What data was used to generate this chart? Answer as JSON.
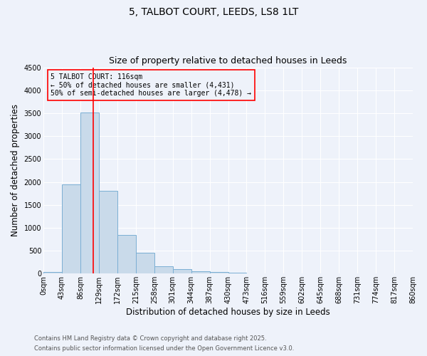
{
  "title1": "5, TALBOT COURT, LEEDS, LS8 1LT",
  "title2": "Size of property relative to detached houses in Leeds",
  "xlabel": "Distribution of detached houses by size in Leeds",
  "ylabel": "Number of detached properties",
  "bar_edges": [
    0,
    43,
    86,
    129,
    172,
    215,
    258,
    301,
    344,
    387,
    430,
    473,
    516,
    559,
    602,
    645,
    688,
    731,
    774,
    817,
    860
  ],
  "bar_heights": [
    30,
    1950,
    3520,
    1800,
    850,
    450,
    160,
    90,
    55,
    30,
    15,
    5,
    0,
    0,
    0,
    0,
    0,
    0,
    0,
    0
  ],
  "bar_color": "#c9daea",
  "bar_edgecolor": "#7bafd4",
  "redline_x": 116,
  "ylim": [
    0,
    4500
  ],
  "yticks": [
    0,
    500,
    1000,
    1500,
    2000,
    2500,
    3000,
    3500,
    4000,
    4500
  ],
  "annotation_text": "5 TALBOT COURT: 116sqm\n← 50% of detached houses are smaller (4,431)\n50% of semi-detached houses are larger (4,478) →",
  "footer1": "Contains HM Land Registry data © Crown copyright and database right 2025.",
  "footer2": "Contains public sector information licensed under the Open Government Licence v3.0.",
  "background_color": "#eef2fa",
  "grid_color": "#ffffff",
  "title1_fontsize": 10,
  "title2_fontsize": 9,
  "tick_fontsize": 7,
  "label_fontsize": 8.5,
  "annot_fontsize": 7,
  "footer_fontsize": 6
}
